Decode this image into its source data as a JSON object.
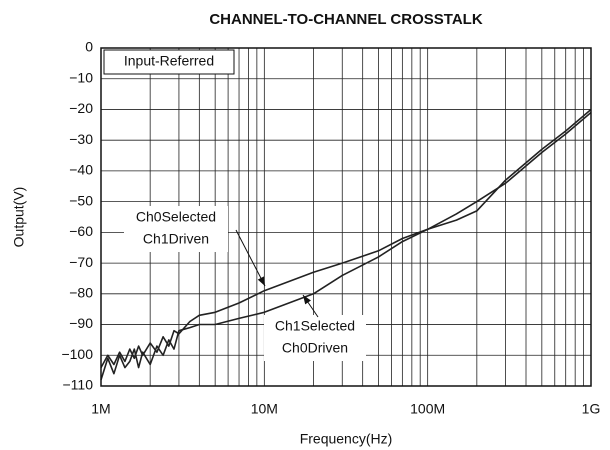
{
  "chart_data": {
    "type": "line",
    "title": "CHANNEL-TO-CHANNEL CROSSTALK",
    "xlabel": "Frequency(Hz)",
    "ylabel": "Output(V)",
    "xscale": "log",
    "grid": true,
    "x": [
      1000000,
      1100000,
      1200000,
      1300000,
      1400000,
      1500000,
      1600000,
      1700000,
      1800000,
      2000000,
      2200000,
      2400000,
      2600000,
      2800000,
      3000000,
      3500000,
      4000000,
      5000000,
      7000000,
      10000000,
      20000000,
      30000000,
      50000000,
      70000000,
      100000000,
      150000000,
      200000000,
      300000000,
      500000000,
      700000000,
      1000000000
    ],
    "series": [
      {
        "color": "#222222",
        "values": [
          -104,
          -100,
          -103,
          -99,
          -102,
          -98,
          -101,
          -97,
          -100,
          -96,
          -99,
          -94,
          -97,
          -92,
          -93,
          -89,
          -87,
          -86,
          -83,
          -79,
          -73,
          -70,
          -66,
          -62,
          -59,
          -54,
          -50,
          -44,
          -34,
          -28,
          -21
        ]
      },
      {
        "color": "#222222",
        "values": [
          -108,
          -101,
          -106,
          -100,
          -104,
          -102,
          -98,
          -104,
          -99,
          -103,
          -97,
          -100,
          -95,
          -98,
          -92,
          -91,
          -90,
          -90,
          -88,
          -86,
          -80,
          -74,
          -68,
          -63,
          -59,
          -56,
          -53,
          -43,
          -33,
          -27,
          -20
        ]
      }
    ],
    "annotations": [
      {
        "lines": [
          "Input-Referred"
        ]
      },
      {
        "lines": [
          "Ch0Selected",
          "Ch1Driven"
        ]
      },
      {
        "lines": [
          "Ch1Selected",
          "Ch0Driven"
        ]
      }
    ],
    "xlim": [
      1000000,
      1000000000
    ],
    "xticks": [
      {
        "value": 1000000,
        "label": "1M"
      },
      {
        "value": 10000000,
        "label": "10M"
      },
      {
        "value": 100000000,
        "label": "100M"
      },
      {
        "value": 1000000000,
        "label": "1G"
      }
    ],
    "ylim": [
      -110,
      0
    ],
    "yticks": [
      {
        "value": -110,
        "label": "−110"
      },
      {
        "value": -100,
        "label": "−100"
      },
      {
        "value": -90,
        "label": "−90"
      },
      {
        "value": -80,
        "label": "−80"
      },
      {
        "value": -70,
        "label": "−70"
      },
      {
        "value": -60,
        "label": "−60"
      },
      {
        "value": -50,
        "label": "−50"
      },
      {
        "value": -40,
        "label": "−40"
      },
      {
        "value": -30,
        "label": "−30"
      },
      {
        "value": -20,
        "label": "−20"
      },
      {
        "value": -10,
        "label": "−10"
      },
      0
    ]
  }
}
